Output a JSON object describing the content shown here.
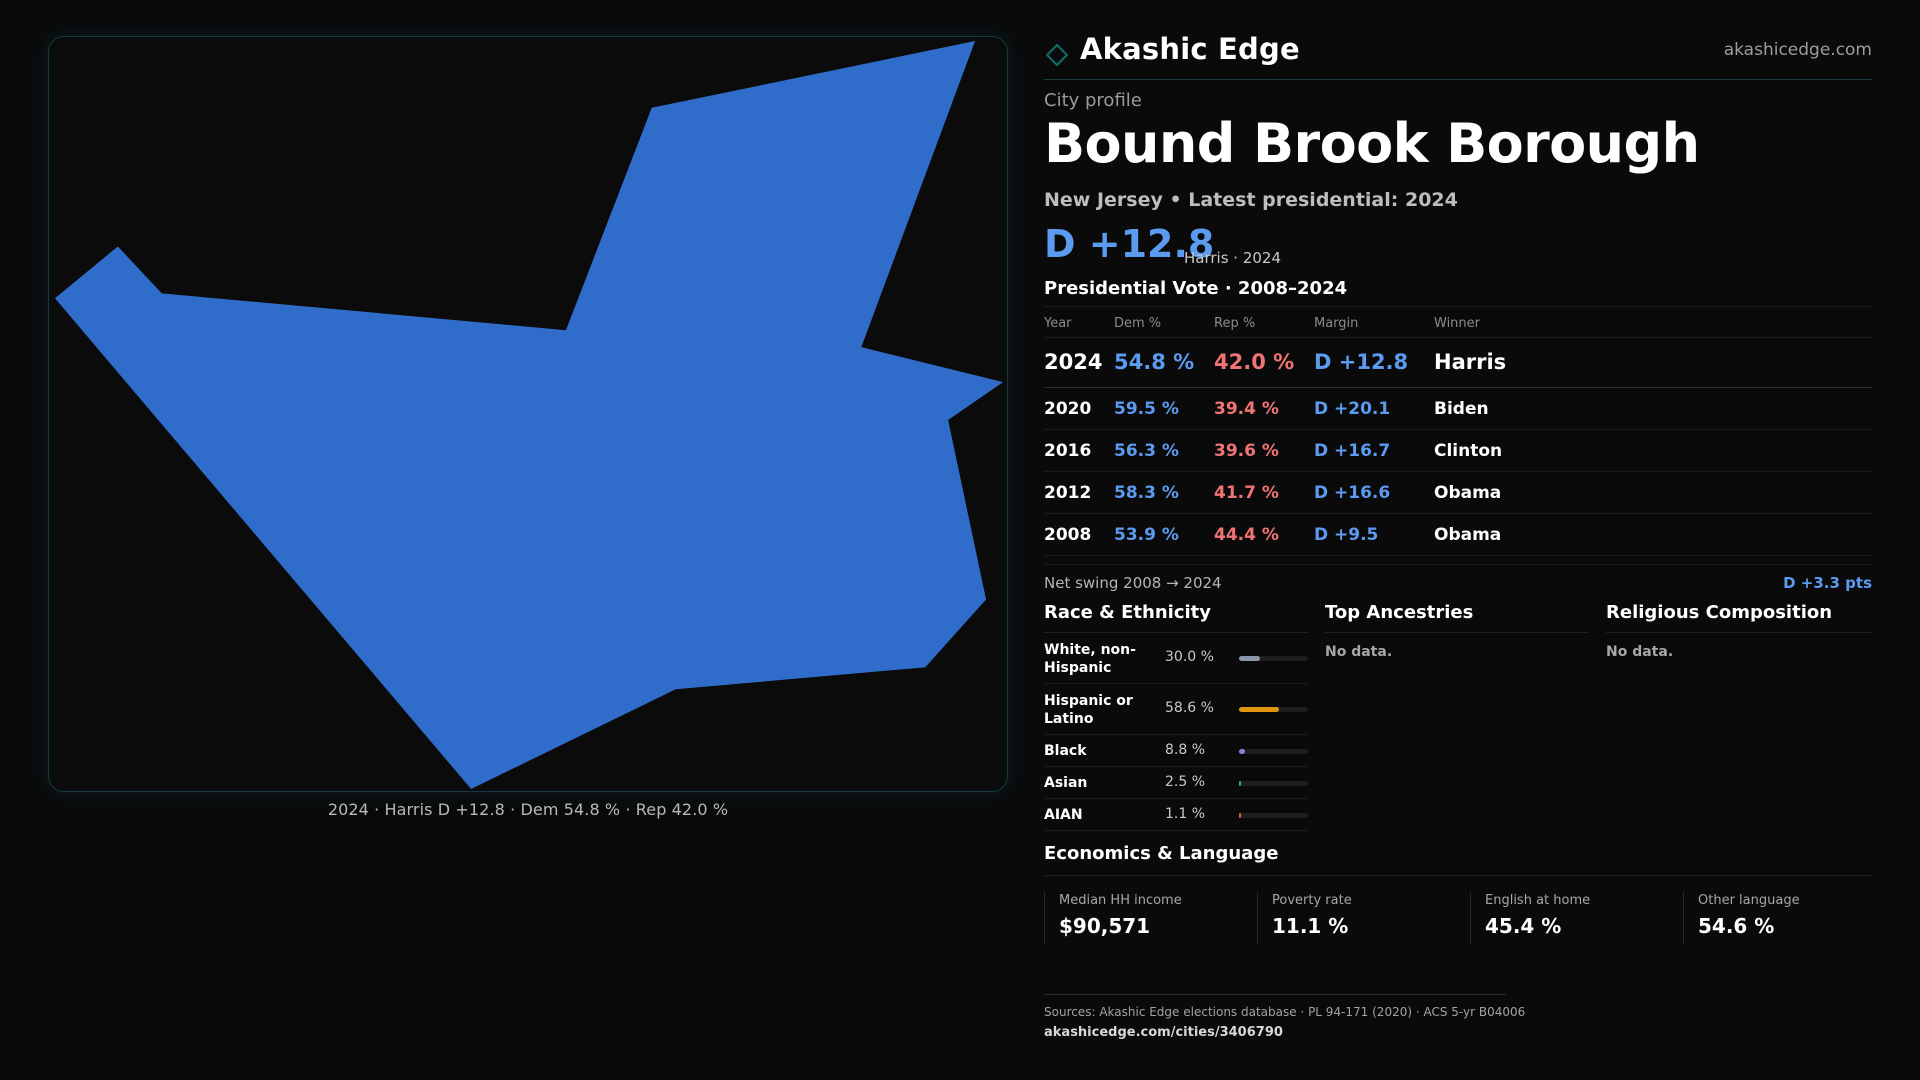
{
  "brand": {
    "name": "Akashic Edge",
    "url": "akashicedge.com",
    "accent_color": "#0f6f6a"
  },
  "page": {
    "kicker": "City profile",
    "title": "Bound Brook Borough",
    "subtitle": "New Jersey • Latest presidential: 2024",
    "headline_margin": "D +12.8",
    "headline_note": "Harris · 2024"
  },
  "map": {
    "fill_color": "#306dcb",
    "caption": "2024 · Harris D +12.8 · Dem 54.8 % · Rep 42.0 %"
  },
  "vote_table": {
    "title": "Presidential Vote · 2008–2024",
    "headers": [
      "Year",
      "Dem %",
      "Rep %",
      "Margin",
      "Winner"
    ],
    "rows": [
      {
        "year": "2024",
        "dem": "54.8 %",
        "rep": "42.0 %",
        "margin": "D +12.8",
        "winner": "Harris"
      },
      {
        "year": "2020",
        "dem": "59.5 %",
        "rep": "39.4 %",
        "margin": "D +20.1",
        "winner": "Biden"
      },
      {
        "year": "2016",
        "dem": "56.3 %",
        "rep": "39.6 %",
        "margin": "D +16.7",
        "winner": "Clinton"
      },
      {
        "year": "2012",
        "dem": "58.3 %",
        "rep": "41.7 %",
        "margin": "D +16.6",
        "winner": "Obama"
      },
      {
        "year": "2008",
        "dem": "53.9 %",
        "rep": "44.4 %",
        "margin": "D +9.5",
        "winner": "Obama"
      }
    ],
    "swing_label": "Net swing 2008 → 2024",
    "swing_value": "D +3.3 pts",
    "dem_color": "#5b9bf0",
    "rep_color": "#f07474"
  },
  "race": {
    "title": "Race & Ethnicity",
    "rows": [
      {
        "label": "White, non-Hispanic",
        "pct": "30.0 %",
        "value": 30.0,
        "color": "#8a97ab"
      },
      {
        "label": "Hispanic or Latino",
        "pct": "58.6 %",
        "value": 58.6,
        "color": "#e0960f"
      },
      {
        "label": "Black",
        "pct": "8.8 %",
        "value": 8.8,
        "color": "#8f7fe0"
      },
      {
        "label": "Asian",
        "pct": "2.5 %",
        "value": 2.5,
        "color": "#1fb39a"
      },
      {
        "label": "AIAN",
        "pct": "1.1 %",
        "value": 1.1,
        "color": "#d8643c"
      }
    ]
  },
  "ancestries": {
    "title": "Top Ancestries",
    "empty": "No data."
  },
  "religion": {
    "title": "Religious Composition",
    "empty": "No data."
  },
  "economics": {
    "title": "Economics & Language",
    "items": [
      {
        "label": "Median HH income",
        "value": "$90,571"
      },
      {
        "label": "Poverty rate",
        "value": "11.1 %"
      },
      {
        "label": "English at home",
        "value": "45.4 %"
      },
      {
        "label": "Other language",
        "value": "54.6 %"
      }
    ]
  },
  "footer": {
    "sources": "Sources: Akashic Edge elections database · PL 94-171 (2020) · ACS 5-yr B04006",
    "url": "akashicedge.com/cities/3406790"
  }
}
